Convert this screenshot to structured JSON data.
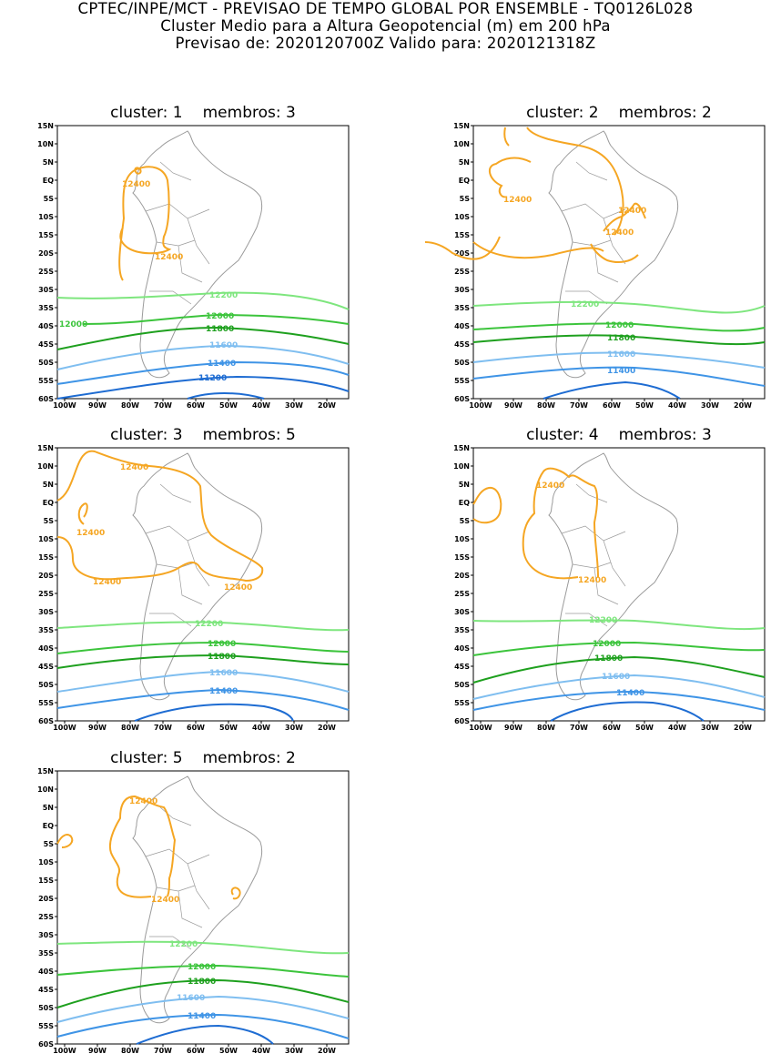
{
  "header": {
    "line1": "CPTEC/INPE/MCT - PREVISAO DE TEMPO GLOBAL POR ENSEMBLE - TQ0126L028",
    "line2": "Cluster Medio para a Altura Geopotencial (m) em 200 hPa",
    "line3": "Previsao de: 2020120700Z    Valido para: 2020121318Z"
  },
  "axes": {
    "lat_labels": [
      "15N",
      "10N",
      "5N",
      "EQ",
      "5S",
      "10S",
      "15S",
      "20S",
      "25S",
      "30S",
      "35S",
      "40S",
      "45S",
      "50S",
      "55S",
      "60S"
    ],
    "lon_labels": [
      "100W",
      "90W",
      "80W",
      "70W",
      "60W",
      "50W",
      "40W",
      "30W",
      "20W"
    ]
  },
  "colors": {
    "c12400": "#f5a623",
    "c12200": "#7ee67e",
    "c12000": "#3cc43c",
    "c11800": "#1ea01e",
    "c11600": "#7fbef0",
    "c11400": "#3f94e6",
    "c11200": "#1e6cd2",
    "coast": "#9a9a9a"
  },
  "clusters": [
    {
      "title_cluster": "cluster:  1",
      "title_members": "membros:  3",
      "labels": {
        "l12400a": "12400",
        "l12400b": "12400",
        "l12200": "12200",
        "l12000a": "12000",
        "l12000b": "12000",
        "l11800": "11800",
        "l11600": "11600",
        "l11400": "11400",
        "l11200": "11200"
      }
    },
    {
      "title_cluster": "cluster:  2",
      "title_members": "membros:  2",
      "labels": {
        "l12400a": "12400",
        "l12400b": "12400",
        "l12400c": "12400",
        "l12200": "12200",
        "l12000": "12000",
        "l11800": "11800",
        "l11600": "11600",
        "l11400": "11400"
      }
    },
    {
      "title_cluster": "cluster:  3",
      "title_members": "membros:  5",
      "labels": {
        "l12400a": "12400",
        "l12400b": "12400",
        "l12400c": "12400",
        "l12400d": "12400",
        "l12200": "12200",
        "l12000": "12000",
        "l11800": "11800",
        "l11600": "11600",
        "l11400": "11400"
      }
    },
    {
      "title_cluster": "cluster:  4",
      "title_members": "membros:  3",
      "labels": {
        "l12400a": "12400",
        "l12400b": "12400",
        "l12200": "12200",
        "l12000": "12000",
        "l11800": "11800",
        "l11600": "11600",
        "l11400": "11400"
      }
    },
    {
      "title_cluster": "cluster:  5",
      "title_members": "membros:  2",
      "labels": {
        "l12400a": "12400",
        "l12400b": "12400",
        "l12200": "12200",
        "l12000": "12000",
        "l11800": "11800",
        "l11600": "11600",
        "l11400": "11400"
      }
    }
  ]
}
